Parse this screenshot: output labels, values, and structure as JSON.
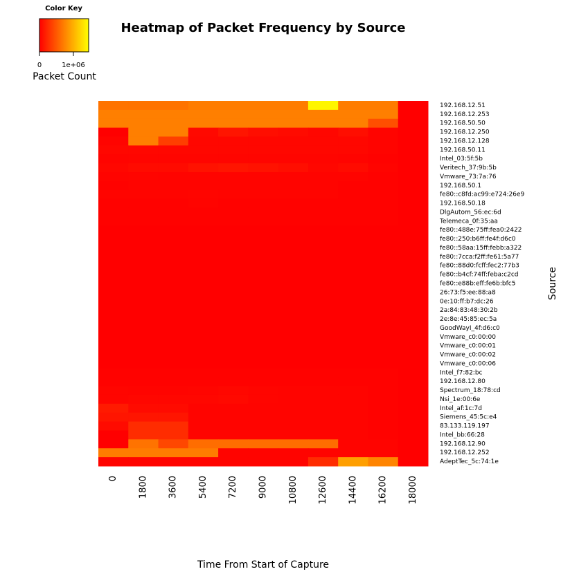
{
  "chart_data": {
    "type": "heatmap",
    "title": "Heatmap of Packet Frequency by Source",
    "x_label": "Time From Start of Capture",
    "y_label": "Source",
    "x": [
      0,
      1800,
      3600,
      5400,
      7200,
      9000,
      10800,
      12600,
      14400,
      16200,
      18000
    ],
    "y": [
      "192.168.12.51",
      "192.168.12.253",
      "192.168.50.50",
      "192.168.12.250",
      "192.168.12.128",
      "192.168.50.11",
      "Intel_03:5f:5b",
      "Veritech_37:9b:5b",
      "Vmware_73:7a:76",
      "192.168.50.1",
      "fe80::c8fd:ac99:e724:26e9",
      "192.168.50.18",
      "DlgAutom_56:ec:6d",
      "Telemeca_0f:35:aa",
      "fe80::488e:75ff:fea0:2422",
      "fe80::250:b6ff:fe4f:d6c0",
      "fe80::58aa:15ff:febb:a322",
      "fe80::7cca:f2ff:fe61:5a77",
      "fe80::88d0:fcff:fec2:77b3",
      "fe80::b4cf:74ff:feba:c2cd",
      "fe80::e88b:eff:fe6b:bfc5",
      "26:73:f5:ee:88:a8",
      "0e:10:ff:b7:dc:26",
      "2a:84:83:48:30:2b",
      "2e:8e:45:85:ec:5a",
      "GoodWayI_4f:d6:c0",
      "Vmware_c0:00:00",
      "Vmware_c0:00:01",
      "Vmware_c0:00:02",
      "Vmware_c0:00:06",
      "Intel_f7:82:bc",
      "192.168.12.80",
      "Spectrum_18:78:cd",
      "Nsi_1e:00:6e",
      "Intel_af:1c:7d",
      "Siemens_45:5c:e4",
      "83.133.119.197",
      "Intel_bb:66:28",
      "192.168.12.90",
      "192.168.12.252",
      "AdeptTec_5c:74:1e"
    ],
    "values": [
      [
        650000,
        650000,
        650000,
        700000,
        700000,
        700000,
        700000,
        1400000,
        700000,
        700000,
        0
      ],
      [
        720000,
        720000,
        720000,
        720000,
        720000,
        720000,
        720000,
        720000,
        720000,
        720000,
        0
      ],
      [
        720000,
        720000,
        720000,
        720000,
        720000,
        720000,
        720000,
        720000,
        720000,
        450000,
        0
      ],
      [
        0,
        720000,
        720000,
        50000,
        120000,
        80000,
        60000,
        40000,
        80000,
        20000,
        0
      ],
      [
        20000,
        720000,
        350000,
        40000,
        40000,
        40000,
        40000,
        40000,
        40000,
        20000,
        0
      ],
      [
        40000,
        40000,
        40000,
        40000,
        40000,
        40000,
        40000,
        40000,
        40000,
        20000,
        0
      ],
      [
        20000,
        30000,
        30000,
        30000,
        30000,
        30000,
        30000,
        30000,
        20000,
        10000,
        0
      ],
      [
        40000,
        60000,
        60000,
        100000,
        120000,
        100000,
        80000,
        40000,
        60000,
        20000,
        0
      ],
      [
        20000,
        30000,
        20000,
        20000,
        20000,
        20000,
        20000,
        20000,
        20000,
        10000,
        0
      ],
      [
        10000,
        20000,
        20000,
        20000,
        20000,
        20000,
        20000,
        20000,
        10000,
        10000,
        0
      ],
      [
        20000,
        20000,
        20000,
        30000,
        20000,
        20000,
        20000,
        20000,
        10000,
        10000,
        0
      ],
      [
        10000,
        10000,
        10000,
        20000,
        10000,
        10000,
        10000,
        10000,
        10000,
        10000,
        0
      ],
      [
        10000,
        10000,
        10000,
        10000,
        10000,
        10000,
        10000,
        10000,
        10000,
        10000,
        0
      ],
      [
        10000,
        10000,
        10000,
        10000,
        10000,
        10000,
        10000,
        10000,
        10000,
        10000,
        0
      ],
      [
        0,
        0,
        0,
        0,
        0,
        0,
        0,
        0,
        0,
        0,
        0
      ],
      [
        0,
        0,
        0,
        0,
        0,
        0,
        0,
        0,
        0,
        0,
        0
      ],
      [
        0,
        0,
        0,
        0,
        0,
        0,
        0,
        0,
        0,
        0,
        0
      ],
      [
        0,
        0,
        0,
        0,
        0,
        0,
        0,
        0,
        0,
        0,
        0
      ],
      [
        0,
        0,
        0,
        0,
        0,
        0,
        0,
        0,
        0,
        0,
        0
      ],
      [
        0,
        0,
        0,
        0,
        0,
        0,
        0,
        0,
        0,
        0,
        0
      ],
      [
        0,
        0,
        0,
        0,
        0,
        0,
        0,
        0,
        0,
        0,
        0
      ],
      [
        0,
        0,
        0,
        0,
        0,
        0,
        0,
        0,
        0,
        0,
        0
      ],
      [
        0,
        0,
        0,
        0,
        0,
        0,
        0,
        0,
        0,
        0,
        0
      ],
      [
        0,
        0,
        0,
        0,
        0,
        0,
        0,
        0,
        0,
        0,
        0
      ],
      [
        0,
        0,
        0,
        0,
        0,
        0,
        0,
        0,
        0,
        0,
        0
      ],
      [
        0,
        0,
        0,
        0,
        0,
        0,
        0,
        0,
        0,
        0,
        0
      ],
      [
        0,
        0,
        0,
        0,
        0,
        0,
        0,
        0,
        0,
        0,
        0
      ],
      [
        0,
        0,
        0,
        0,
        0,
        0,
        0,
        0,
        0,
        0,
        0
      ],
      [
        0,
        0,
        0,
        0,
        0,
        0,
        0,
        0,
        0,
        0,
        0
      ],
      [
        0,
        0,
        0,
        0,
        0,
        0,
        0,
        0,
        0,
        0,
        0
      ],
      [
        10000,
        10000,
        10000,
        10000,
        10000,
        10000,
        10000,
        10000,
        10000,
        10000,
        0
      ],
      [
        10000,
        10000,
        10000,
        10000,
        10000,
        10000,
        10000,
        10000,
        10000,
        10000,
        0
      ],
      [
        30000,
        20000,
        20000,
        30000,
        40000,
        30000,
        20000,
        20000,
        20000,
        10000,
        0
      ],
      [
        30000,
        40000,
        40000,
        40000,
        50000,
        30000,
        20000,
        20000,
        20000,
        10000,
        0
      ],
      [
        150000,
        60000,
        60000,
        20000,
        20000,
        20000,
        20000,
        20000,
        20000,
        10000,
        0
      ],
      [
        120000,
        120000,
        120000,
        20000,
        20000,
        20000,
        20000,
        20000,
        20000,
        10000,
        0
      ],
      [
        60000,
        250000,
        250000,
        20000,
        20000,
        20000,
        20000,
        20000,
        20000,
        10000,
        0
      ],
      [
        0,
        250000,
        250000,
        20000,
        20000,
        20000,
        20000,
        20000,
        20000,
        10000,
        0
      ],
      [
        0,
        650000,
        400000,
        620000,
        620000,
        620000,
        620000,
        620000,
        20000,
        20000,
        0
      ],
      [
        700000,
        700000,
        700000,
        700000,
        20000,
        20000,
        20000,
        20000,
        20000,
        20000,
        0
      ],
      [
        20000,
        20000,
        20000,
        20000,
        20000,
        20000,
        20000,
        250000,
        900000,
        750000,
        0
      ]
    ],
    "colorbar": {
      "title": "Color Key",
      "label": "Packet Count",
      "lim": [
        0,
        1450000
      ],
      "ticks": [
        0,
        {
          "value": 1000000,
          "label": "1e+06"
        }
      ],
      "colors": [
        "#ff0000",
        "#ff8000",
        "#ffff00"
      ]
    }
  }
}
